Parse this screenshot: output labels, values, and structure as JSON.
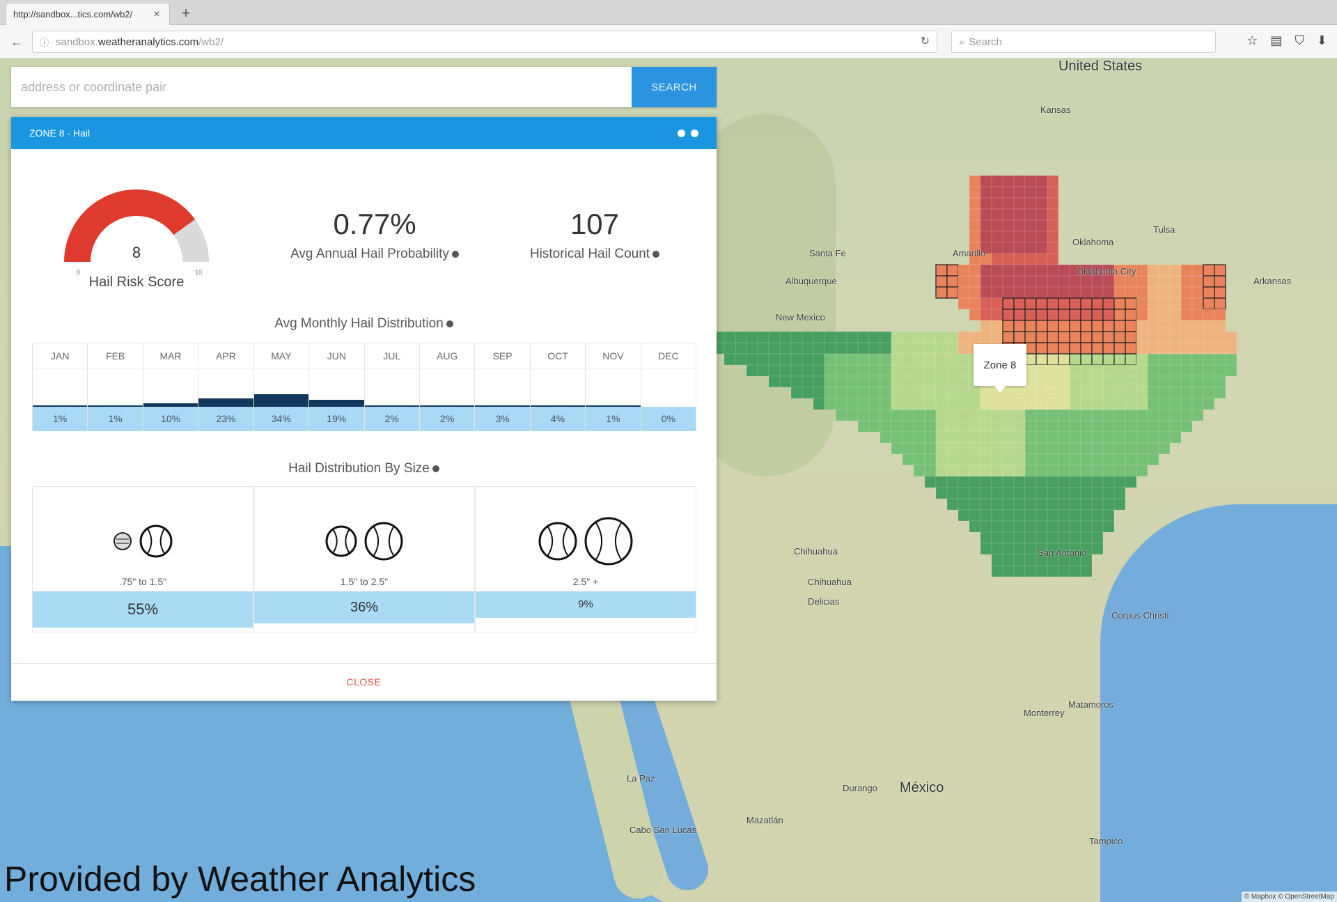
{
  "browser": {
    "tab_title": "http://sandbox...tics.com/wb2/",
    "url_prefix": "sandbox.",
    "url_host": "weatheranalytics.com",
    "url_path": "/wb2/",
    "search_placeholder": "Search"
  },
  "search": {
    "placeholder": "address or coordinate pair",
    "button_label": "SEARCH"
  },
  "panel": {
    "title": "ZONE 8 - Hail",
    "gauge": {
      "value": "8",
      "score": 8,
      "min": "0",
      "max": "10",
      "label": "Hail Risk Score",
      "fill_color": "#e03a2f",
      "track_color": "#dadada"
    },
    "probability": {
      "value": "0.77%",
      "label": "Avg Annual Hail Probability"
    },
    "count": {
      "value": "107",
      "label": "Historical Hail Count"
    },
    "monthly_title": "Avg Monthly Hail Distribution",
    "months": [
      {
        "name": "JAN",
        "pct": "1%",
        "value": 1
      },
      {
        "name": "FEB",
        "pct": "1%",
        "value": 1
      },
      {
        "name": "MAR",
        "pct": "10%",
        "value": 10
      },
      {
        "name": "APR",
        "pct": "23%",
        "value": 23
      },
      {
        "name": "MAY",
        "pct": "34%",
        "value": 34
      },
      {
        "name": "JUN",
        "pct": "19%",
        "value": 19
      },
      {
        "name": "JUL",
        "pct": "2%",
        "value": 2
      },
      {
        "name": "AUG",
        "pct": "2%",
        "value": 2
      },
      {
        "name": "SEP",
        "pct": "3%",
        "value": 3
      },
      {
        "name": "OCT",
        "pct": "4%",
        "value": 4
      },
      {
        "name": "NOV",
        "pct": "1%",
        "value": 1
      },
      {
        "name": "DEC",
        "pct": "0%",
        "value": 0
      }
    ],
    "size_title": "Hail Distribution By Size",
    "sizes": [
      {
        "range": ".75\" to 1.5\"",
        "pct": "55%",
        "icons": [
          "golf-ball-icon",
          "baseball-icon"
        ]
      },
      {
        "range": "1.5\" to 2.5\"",
        "pct": "36%",
        "icons": [
          "baseball-icon",
          "softball-icon"
        ]
      },
      {
        "range": "2.5\" +",
        "pct": "9%",
        "icons": [
          "softball-icon",
          "large-hail-icon"
        ]
      }
    ],
    "close_label": "CLOSE"
  },
  "map": {
    "tooltip": "Zone 8",
    "labels": {
      "united_states": "United States",
      "kansas": "Kansas",
      "tulsa": "Tulsa",
      "oklahoma": "Oklahoma",
      "oklahoma_city": "Oklahoma City",
      "arkansas": "Arkansas",
      "santa_fe": "Santa Fe",
      "albuquerque": "Albuquerque",
      "new_mexico": "New Mexico",
      "amarillo": "Amarillo",
      "chihuahua_state": "Chihuahua",
      "chihuahua": "Chihuahua",
      "delicias": "Delicias",
      "san_antonio": "San Antonio",
      "corpus_christi": "Corpus Christi",
      "monterrey": "Monterrey",
      "matamoros": "Matamoros",
      "mexico": "México",
      "la_paz": "La Paz",
      "cabo": "Cabo San Lucas",
      "tampico": "Tampico",
      "durango": "Durango",
      "mazatlan": "Mazatlán"
    },
    "attribution": "© Mapbox © OpenStreetMap",
    "colors": {
      "dark_red": "#b8404f",
      "red": "#d9574f",
      "orange": "#ea7d55",
      "peach": "#f0b07a",
      "yellow": "#dfe39a",
      "light_green": "#b3d98a",
      "green": "#6fbf72",
      "dark_green": "#3c9a5a"
    }
  },
  "footer_credit": "Provided by Weather Analytics"
}
